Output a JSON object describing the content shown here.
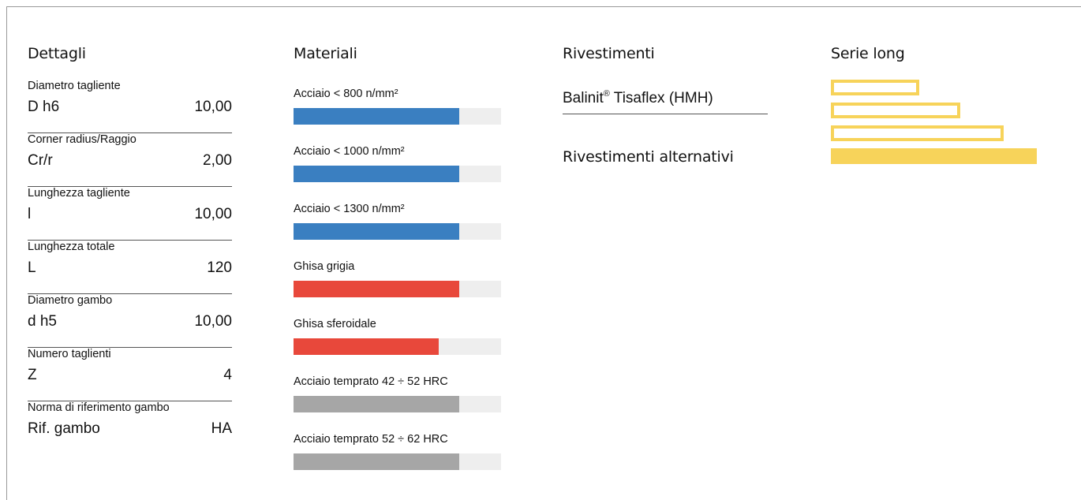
{
  "dettagli": {
    "title": "Dettagli",
    "rows": [
      {
        "label": "Diametro tagliente",
        "symbol": "D h6",
        "value": "10,00"
      },
      {
        "label": "Corner radius/Raggio",
        "symbol": "Cr/r",
        "value": "2,00"
      },
      {
        "label": "Lunghezza tagliente",
        "symbol": "l",
        "value": "10,00"
      },
      {
        "label": "Lunghezza totale",
        "symbol": "L",
        "value": "120"
      },
      {
        "label": "Diametro gambo",
        "symbol": "d h5",
        "value": "10,00"
      },
      {
        "label": "Numero taglienti",
        "symbol": "Z",
        "value": "4"
      },
      {
        "label": "Norma di riferimento gambo",
        "symbol": "Rif. gambo",
        "value": "HA"
      }
    ]
  },
  "materiali": {
    "title": "Materiali",
    "items": [
      {
        "label": "Acciaio < 800 n/mm²",
        "fill": 0.8,
        "color": "#3a7fc1"
      },
      {
        "label": "Acciaio < 1000 n/mm²",
        "fill": 0.8,
        "color": "#3a7fc1"
      },
      {
        "label": "Acciaio < 1300 n/mm²",
        "fill": 0.8,
        "color": "#3a7fc1"
      },
      {
        "label": "Ghisa grigia",
        "fill": 0.8,
        "color": "#e8483b"
      },
      {
        "label": "Ghisa sferoidale",
        "fill": 0.7,
        "color": "#e8483b"
      },
      {
        "label": "Acciaio temprato 42 ÷ 52 HRC",
        "fill": 0.8,
        "color": "#a6a6a6"
      },
      {
        "label": "Acciaio temprato 52 ÷ 62 HRC",
        "fill": 0.8,
        "color": "#a6a6a6"
      }
    ]
  },
  "rivestimenti": {
    "title": "Rivestimenti",
    "coating_name": "Balinit",
    "coating_mark": "®",
    "coating_suffix": " Tisaflex (HMH)",
    "alternative_title": "Rivestimenti alternativi"
  },
  "serie": {
    "title": "Serie long",
    "accent_color": "#f7d35a",
    "bars": [
      {
        "level": 0.43,
        "style": "outline"
      },
      {
        "level": 0.63,
        "style": "outline"
      },
      {
        "level": 0.84,
        "style": "outline"
      },
      {
        "level": 1.0,
        "style": "solid"
      }
    ]
  }
}
